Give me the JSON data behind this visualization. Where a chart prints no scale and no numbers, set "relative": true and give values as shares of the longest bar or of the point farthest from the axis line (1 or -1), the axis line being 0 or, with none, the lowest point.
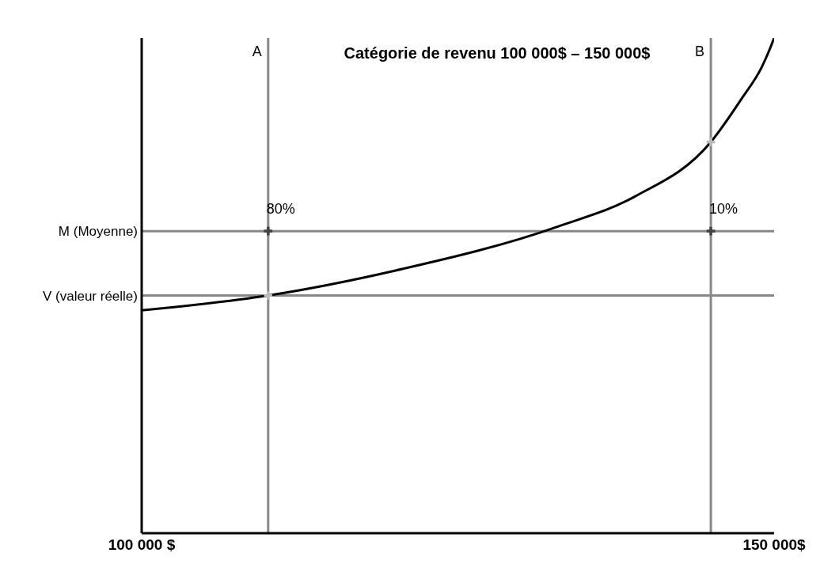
{
  "chart_data": {
    "type": "line",
    "title": "Catégorie de revenu 100 000$ – 150 000$",
    "relative": true,
    "xlim": [
      100000,
      150000
    ],
    "xticks": [
      {
        "value": 100000,
        "label": "100 000 $"
      },
      {
        "value": 150000,
        "label": "150 000$"
      }
    ],
    "grid": false,
    "legend": false,
    "line_style": "solid",
    "series": [
      {
        "color": "#000000",
        "marker": "none",
        "x": [
          100000,
          110000,
          120000,
          133000,
          139000,
          145000,
          147500,
          149000,
          149700,
          150000
        ],
        "values": [
          0.45,
          0.48,
          0.53,
          0.62,
          0.68,
          0.79,
          0.88,
          0.94,
          0.98,
          1
        ]
      },
      {
        "type": "scatter",
        "color": "#444444",
        "marker": "cross",
        "x": [
          110000,
          145000
        ],
        "values": [
          0.61,
          0.61
        ]
      },
      {
        "type": "scatter",
        "color": "#bbbbbb",
        "marker": "cross",
        "x": [
          110000,
          145000
        ],
        "values": [
          0.48,
          0.79
        ]
      }
    ],
    "annotations": [
      {
        "text": "80%",
        "x": 110000,
        "y": 0.61
      },
      {
        "text": "10%",
        "x": 145000,
        "y": 0.61
      }
    ],
    "ref_lines": [
      {
        "axis": "x",
        "value": 110000,
        "label": "A",
        "color": "#888888"
      },
      {
        "axis": "x",
        "value": 145000,
        "label": "B",
        "color": "#888888"
      },
      {
        "axis": "y",
        "value": 0.61,
        "label": "M (Moyenne)",
        "color": "#888888"
      },
      {
        "axis": "y",
        "value": 0.48,
        "label": "V (valeur réelle)",
        "color": "#888888"
      }
    ]
  }
}
